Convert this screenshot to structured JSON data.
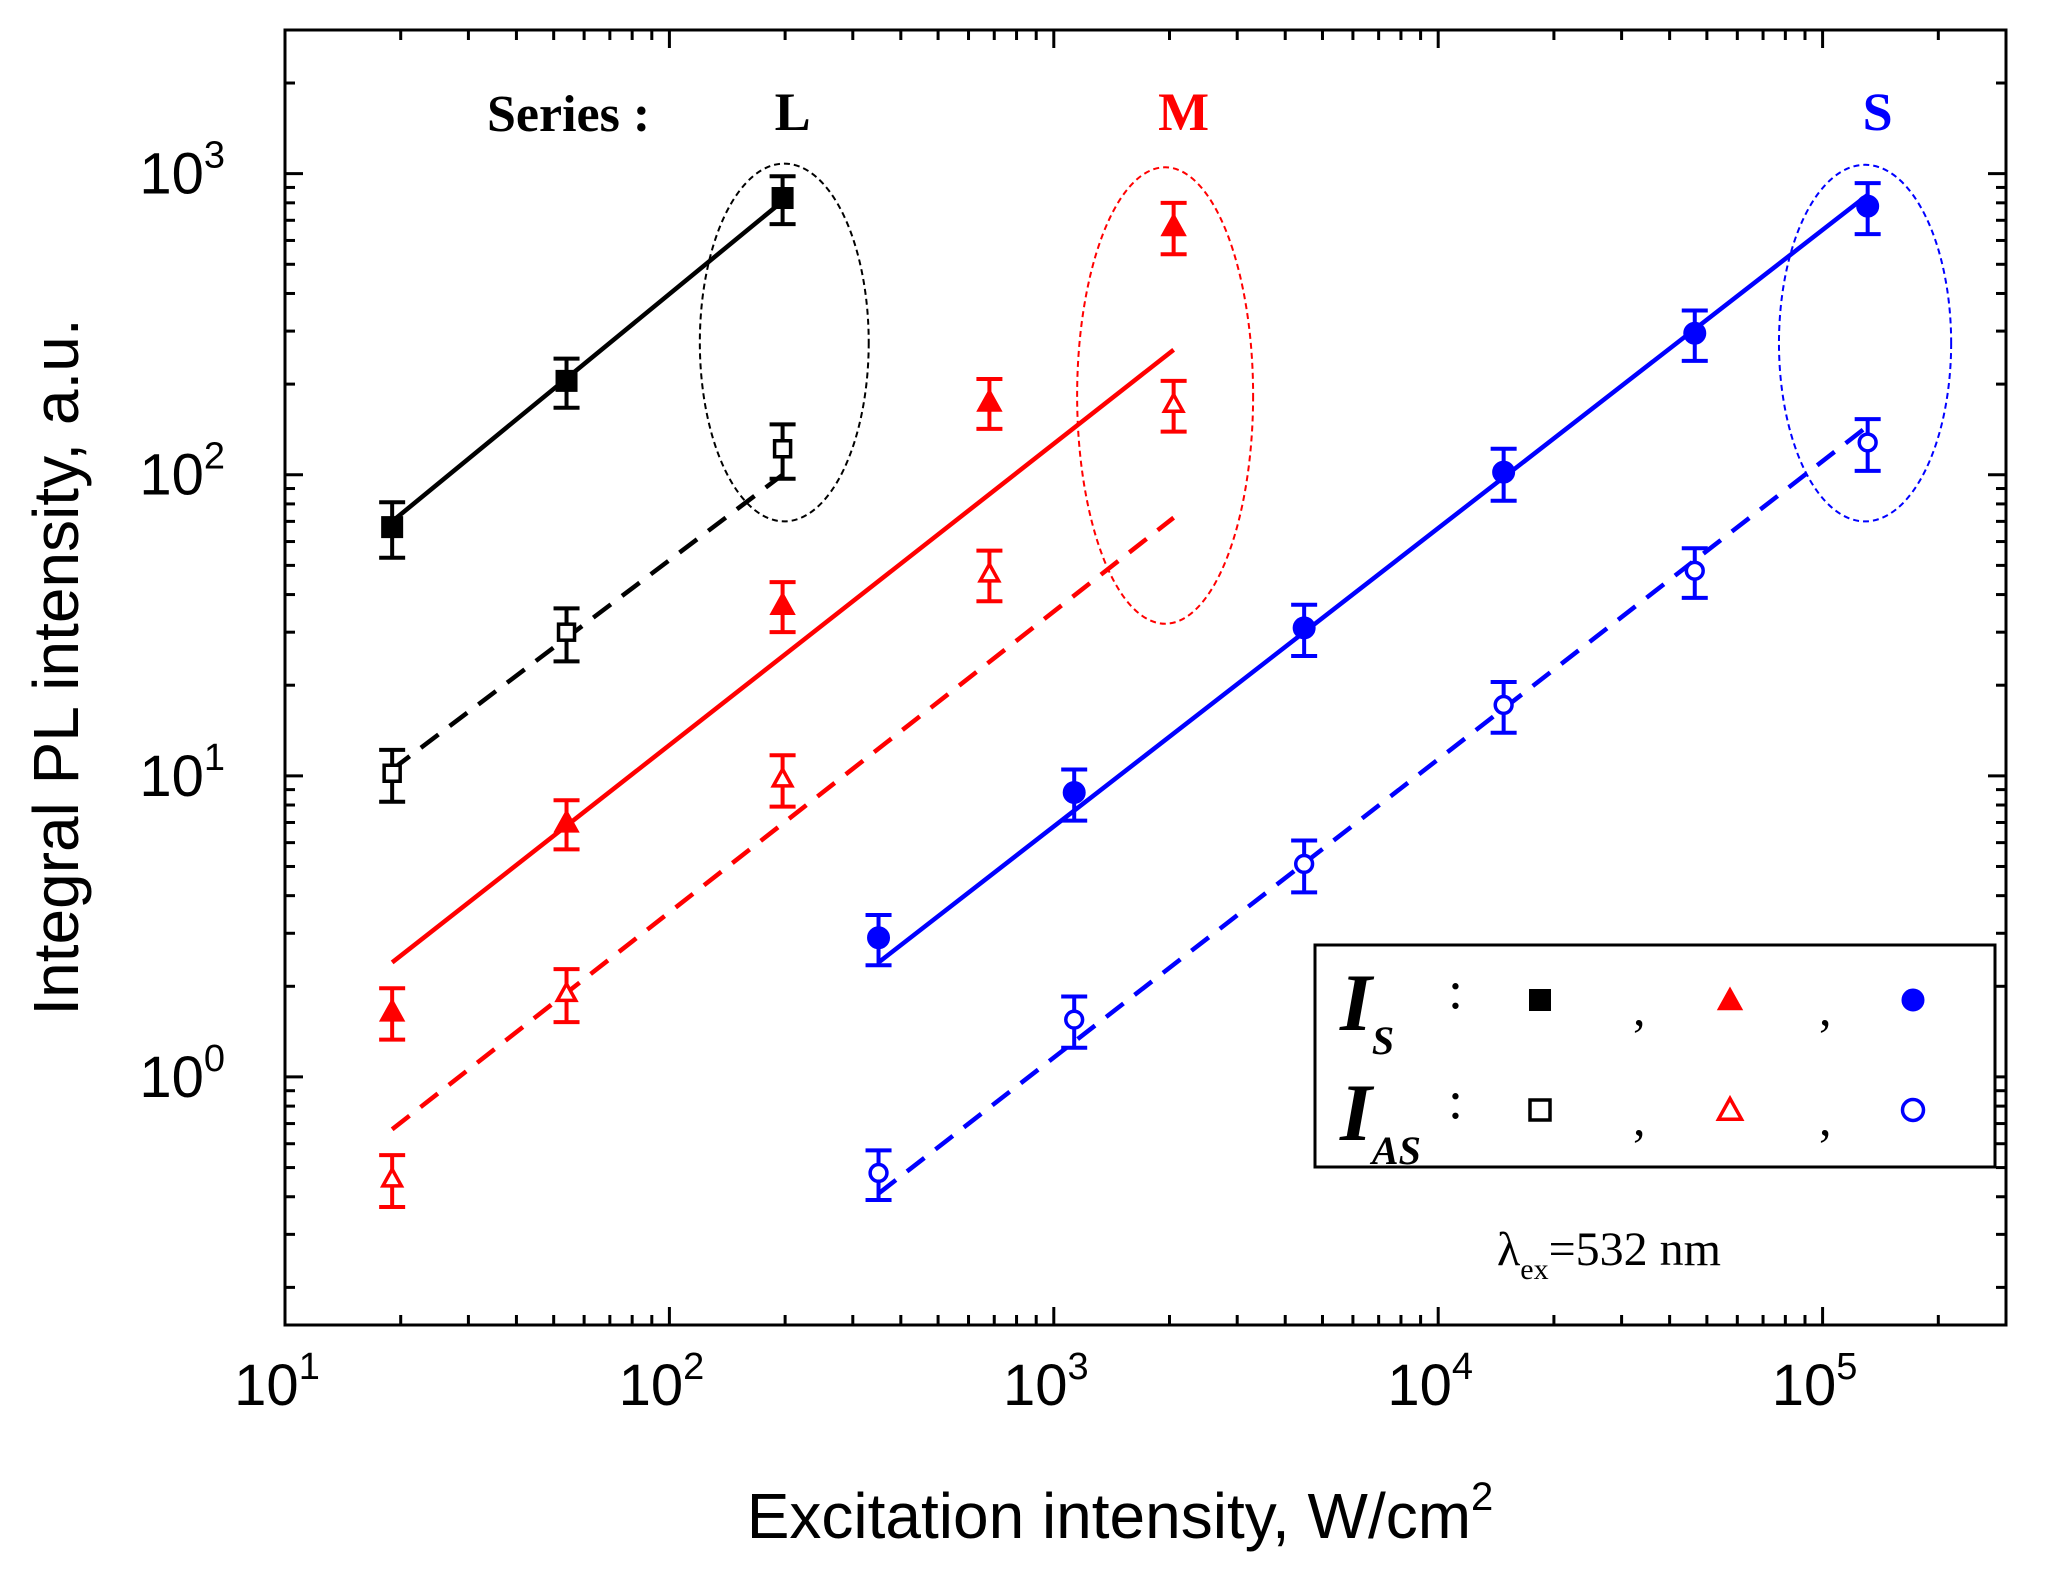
{
  "chart_data": {
    "type": "scatter",
    "xlabel": "Excitation intensity, W/cm",
    "xlabel_sup": "2",
    "ylabel": "Integral PL intensity, a.u.",
    "xscale": "log",
    "yscale": "log",
    "xlim": [
      10,
      300000
    ],
    "ylim": [
      0.15,
      3000
    ],
    "xticks": [
      {
        "base": "10",
        "exp": "1"
      },
      {
        "base": "10",
        "exp": "2"
      },
      {
        "base": "10",
        "exp": "3"
      },
      {
        "base": "10",
        "exp": "4"
      },
      {
        "base": "10",
        "exp": "5"
      }
    ],
    "yticks": [
      {
        "base": "10",
        "exp": "0"
      },
      {
        "base": "10",
        "exp": "1"
      },
      {
        "base": "10",
        "exp": "2"
      },
      {
        "base": "10",
        "exp": "3"
      }
    ],
    "series_heading": "Series :",
    "groups": [
      {
        "label": "L",
        "color": "#000000",
        "marker": "square",
        "x": [
          19,
          54,
          197
        ],
        "IS": [
          67,
          205,
          830
        ],
        "IS_err": [
          14,
          38,
          150
        ],
        "IAS": [
          10.2,
          30,
          122
        ],
        "IAS_err": [
          2,
          6,
          25
        ],
        "fit_x": [
          19,
          197
        ],
        "fit_IS": [
          70,
          810
        ],
        "fit_IAS": [
          10.5,
          100
        ],
        "ellipse": {
          "x_range": [
            120,
            330
          ],
          "y_range": [
            70,
            1080
          ]
        }
      },
      {
        "label": "M",
        "color": "#ff0000",
        "marker": "triangle",
        "x": [
          19,
          54,
          197,
          680,
          2050
        ],
        "IS": [
          1.65,
          7,
          37,
          175,
          670
        ],
        "IS_err": [
          0.32,
          1.3,
          7,
          33,
          130
        ],
        "IAS": [
          0.46,
          1.9,
          9.8,
          47,
          172
        ],
        "IAS_err": [
          0.09,
          0.38,
          1.9,
          9,
          33
        ],
        "fit_x": [
          19,
          2050
        ],
        "fit_IS": [
          2.4,
          260
        ],
        "fit_IAS": [
          0.67,
          72
        ],
        "ellipse": {
          "x_range": [
            1150,
            3300
          ],
          "y_range": [
            32,
            1050
          ]
        }
      },
      {
        "label": "S",
        "color": "#0000ff",
        "marker": "circle",
        "x": [
          350,
          1130,
          4480,
          14800,
          46500,
          131000
        ],
        "IS": [
          2.9,
          8.8,
          31,
          102,
          295,
          780
        ],
        "IS_err": [
          0.55,
          1.7,
          6,
          20,
          56,
          150
        ],
        "IAS": [
          0.48,
          1.55,
          5.1,
          17.2,
          48,
          128
        ],
        "IAS_err": [
          0.09,
          0.3,
          1,
          3.3,
          9,
          25
        ],
        "fit_x": [
          350,
          131000
        ],
        "fit_IS": [
          2.4,
          850
        ],
        "fit_IAS": [
          0.41,
          145
        ],
        "ellipse": {
          "x_range": [
            77000,
            216000
          ],
          "y_range": [
            70,
            1070
          ]
        }
      }
    ],
    "legend": {
      "placement": "bottom-right",
      "rows": [
        {
          "symbol": "I",
          "subscript": "S",
          "sep": ":",
          "markers": "filled"
        },
        {
          "symbol": "I",
          "subscript": "AS",
          "sep": ":",
          "markers": "open"
        }
      ],
      "comma": ","
    },
    "annotation": {
      "prefix": "λ",
      "subscript": "ex",
      "text": "=532 nm"
    }
  }
}
